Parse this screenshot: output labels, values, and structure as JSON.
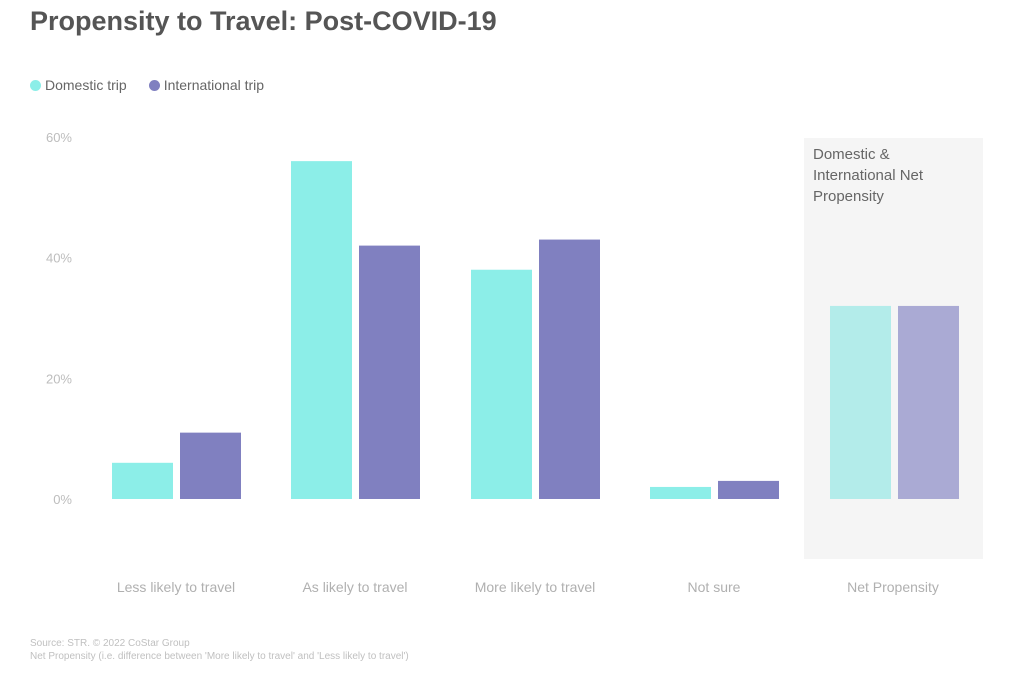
{
  "chart_data": {
    "type": "bar",
    "title": "Propensity to Travel: Post-COVID-19",
    "categories": [
      "Less likely to travel",
      "As likely to travel",
      "More likely to travel",
      "Not sure",
      "Net Propensity"
    ],
    "series": [
      {
        "name": "Domestic trip",
        "values": [
          6,
          56,
          38,
          2,
          32
        ],
        "color": "#8ceee8",
        "net_color": "#b3ecea"
      },
      {
        "name": "International trip",
        "values": [
          11,
          42,
          43,
          3,
          32
        ],
        "color": "#8080c0",
        "net_color": "#aaaad4"
      }
    ],
    "yticks": [
      "0%",
      "20%",
      "40%",
      "60%"
    ],
    "ylim": [
      0,
      60
    ],
    "xlabel": "",
    "ylabel": "",
    "legend_position": "top-left",
    "highlight_panel": {
      "title_lines": [
        "Domestic &",
        "International Net",
        "Propensity"
      ],
      "category": "Net Propensity"
    }
  },
  "footer": {
    "source": "Source: STR. © 2022 CoStar Group",
    "note": "Net Propensity (i.e. difference between 'More likely to travel' and 'Less likely to travel')"
  }
}
